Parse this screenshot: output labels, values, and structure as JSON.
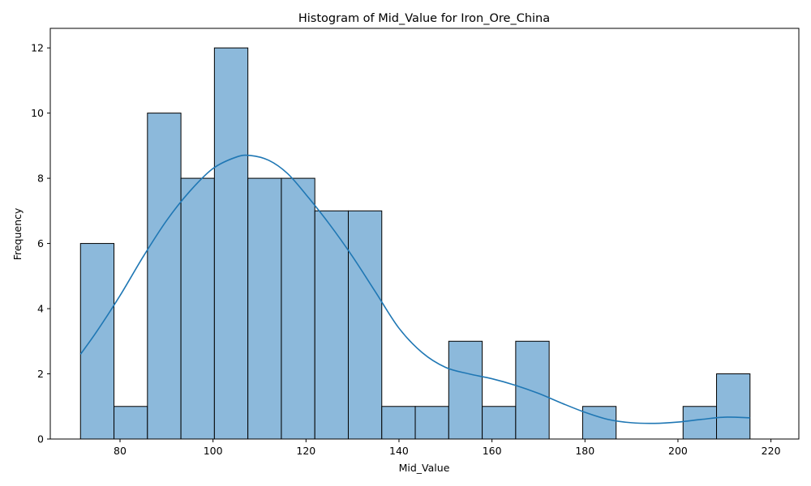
{
  "chart_data": {
    "type": "bar",
    "title": "Histogram of Mid_Value for Iron_Ore_China",
    "xlabel": "Mid_Value",
    "ylabel": "Frequency",
    "xlim": [
      65,
      226
    ],
    "ylim": [
      0,
      12.6
    ],
    "xticks": [
      80,
      100,
      120,
      140,
      160,
      180,
      200,
      220
    ],
    "yticks": [
      0,
      2,
      4,
      6,
      8,
      10,
      12
    ],
    "grid": false,
    "bin_edges": [
      71.5,
      78.7,
      85.9,
      93.1,
      100.3,
      107.5,
      114.7,
      121.9,
      129.1,
      136.3,
      143.5,
      150.7,
      157.9,
      165.1,
      172.3,
      179.5,
      186.7,
      193.9,
      201.1,
      208.3,
      215.5
    ],
    "values": [
      6,
      1,
      10,
      8,
      12,
      8,
      8,
      7,
      7,
      1,
      1,
      3,
      1,
      3,
      0,
      1,
      0,
      0,
      1,
      2
    ],
    "bar_color": "#8cb9db",
    "edge_color": "#000000",
    "kde": {
      "color": "#1f77b4",
      "x": [
        71.5,
        75,
        80,
        85,
        90,
        95,
        100,
        105,
        108,
        112,
        116,
        120,
        125,
        130,
        135,
        140,
        145,
        150,
        155,
        160,
        165,
        170,
        175,
        180,
        185,
        190,
        195,
        200,
        205,
        210,
        215.5
      ],
      "y": [
        2.6,
        3.3,
        4.4,
        5.6,
        6.7,
        7.6,
        8.3,
        8.65,
        8.7,
        8.55,
        8.15,
        7.5,
        6.6,
        5.6,
        4.5,
        3.4,
        2.65,
        2.2,
        2.0,
        1.85,
        1.65,
        1.4,
        1.1,
        0.82,
        0.6,
        0.5,
        0.48,
        0.52,
        0.6,
        0.67,
        0.65
      ]
    }
  }
}
